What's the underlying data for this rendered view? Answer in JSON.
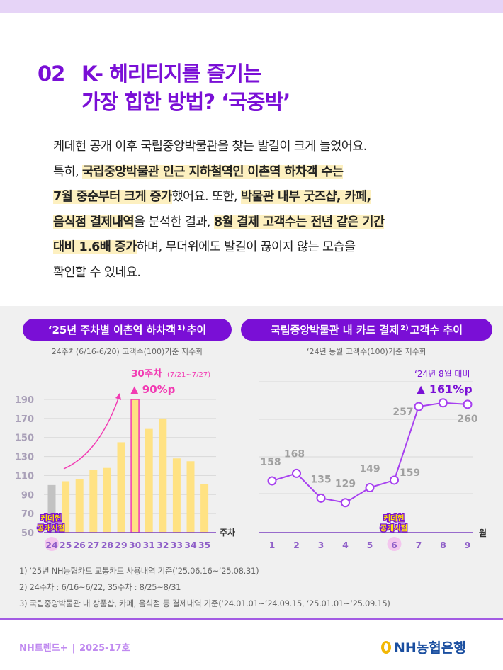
{
  "title": {
    "number": "02",
    "line1": "K- 헤리티지를 즐기는",
    "line2": "가장 힙한 방법? ‘국중박’"
  },
  "body": [
    [
      {
        "t": "케데헌 공개 이후 국립중앙박물관을 찾는 발길이 크게 늘었어요.",
        "h": false
      }
    ],
    [
      {
        "t": "특히, ",
        "h": false
      },
      {
        "t": "국립중앙박물관 인근 지하철역인 이촌역 하차객 수는",
        "h": true
      }
    ],
    [
      {
        "t": "7월 중순부터 크게 증가",
        "h": true
      },
      {
        "t": "했어요. 또한, ",
        "h": false
      },
      {
        "t": "박물관 내부 굿즈샵, 카페,",
        "h": true
      }
    ],
    [
      {
        "t": "음식점 결제내역",
        "h": true
      },
      {
        "t": "을 분석한 결과, ",
        "h": false
      },
      {
        "t": "8월 결제 고객수는 전년 같은 기간",
        "h": true
      }
    ],
    [
      {
        "t": "대비 1.6배 증가",
        "h": true
      },
      {
        "t": "하며, 무더위에도 발길이 끊이지 않는 모습을",
        "h": false
      }
    ],
    [
      {
        "t": "확인할 수 있네요.",
        "h": false
      }
    ]
  ],
  "colors": {
    "purple": "#7a0fd6",
    "pink": "#f23bb3",
    "bar": "#ffe283",
    "bar_base": "#c2c2c2",
    "line": "#a740f0"
  },
  "chart_data": [
    {
      "type": "bar",
      "title": "‘25년 주차별 이촌역 하차객",
      "title_sup": "1)",
      "title_tail": "추이",
      "subtitle": "24주차(6/16-6/20) 고객수(100)기준 지수화",
      "xlabel": "주차",
      "categories": [
        "24",
        "25",
        "26",
        "27",
        "28",
        "29",
        "30",
        "31",
        "32",
        "33",
        "34",
        "35"
      ],
      "values": [
        100,
        104,
        106,
        116,
        118,
        145,
        190,
        159,
        170,
        128,
        125,
        101
      ],
      "ylim": [
        50,
        190
      ],
      "yticks": [
        50,
        70,
        90,
        110,
        130,
        150,
        170,
        190
      ],
      "grid": true,
      "highlight_category": "30",
      "annotation": {
        "label": "30주차",
        "range": "(7/21~7/27)",
        "change": "▲ 90%p"
      },
      "event_marker": {
        "category": "24",
        "line1": "케데헌",
        "line2": "공개시점"
      }
    },
    {
      "type": "line",
      "title": "국립중앙박물관 내 카드 결제",
      "title_sup": "2)",
      "title_tail": "고객수 추이",
      "subtitle": "‘24년 동월 고객수(100)기준 지수화",
      "xlabel": "월",
      "categories": [
        "1",
        "2",
        "3",
        "4",
        "5",
        "6",
        "7",
        "8",
        "9"
      ],
      "values": [
        158,
        168,
        135,
        129,
        149,
        159,
        257,
        262,
        260
      ],
      "data_labels": [
        "158",
        "168",
        "135",
        "129",
        "149",
        "159",
        "257",
        "",
        "260"
      ],
      "grid": true,
      "annotation": {
        "label": "‘24년 8월 대비",
        "change": "▲ 161%p"
      },
      "event_marker": {
        "category": "6",
        "line1": "케데헌",
        "line2": "공개시점"
      }
    }
  ],
  "notes": [
    "1) ‘25년 NH농협카드 교통카드 사용내역 기준(‘25.06.16~‘25.08.31)",
    "2) 24주차 : 6/16~6/22, 35주차 : 8/25~8/31",
    "3) 국립중앙박물관 내 상품샵, 카페, 음식점 등 결제내역 기준(‘24.01.01~‘24.09.15, ‘25.01.01~‘25.09.15)"
  ],
  "footer": {
    "publication": "NH트렌드+",
    "separator": "|",
    "issue": "2025-17호",
    "logo": "NH농협은행"
  }
}
